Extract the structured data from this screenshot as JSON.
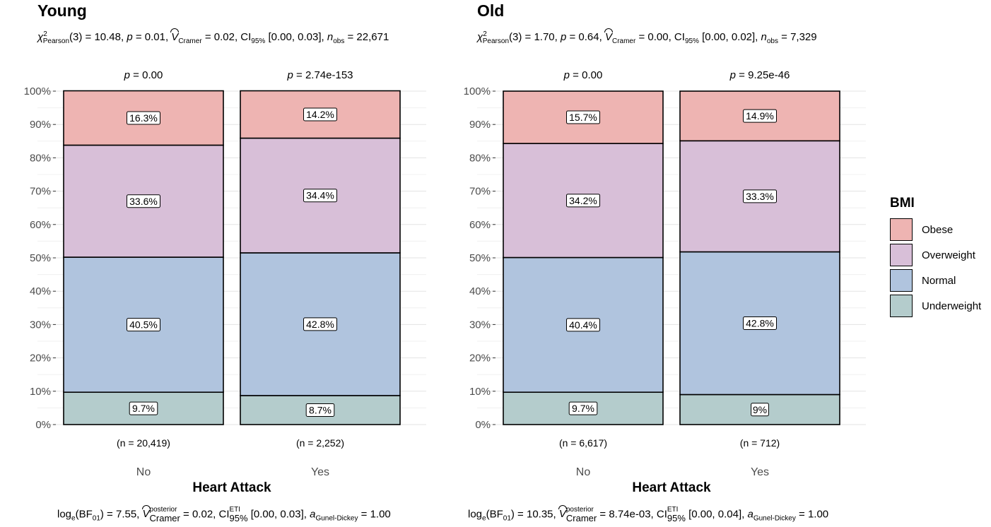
{
  "colors": {
    "Obese": "#eeb4b2",
    "Overweight": "#d8bfd8",
    "Normal": "#b0c4de",
    "Underweight": "#b4cccc"
  },
  "legend": {
    "title": "BMI",
    "items": [
      "Obese",
      "Overweight",
      "Normal",
      "Underweight"
    ]
  },
  "chart_data": [
    {
      "type": "bar",
      "stacked": true,
      "percent": true,
      "title": "Young",
      "subtitle": {
        "chi_label": "χ",
        "chi_sup": "2",
        "chi_sub": "Pearson",
        "chi_val": "(3) = 10.48, ",
        "p_label": "p",
        "p_val": " = 0.01, ",
        "v_label": "V",
        "v_sub": "Cramer",
        "v_val": " = 0.02, CI",
        "ci_sub": "95%",
        "ci_val": " [0.00, 0.03], ",
        "n_label": "n",
        "n_sub": "obs",
        "n_val": " = 22,671"
      },
      "caption": {
        "log_label": "log",
        "log_sub": "e",
        "bf": "(BF",
        "bf_sub": "01",
        "bf_val": ") = 7.55, ",
        "v_label": "V",
        "v_sup": "posterior",
        "v_sub": "Cramer",
        "v_val": " = 0.02, CI",
        "ci_sup": "ETI",
        "ci_sub": "95%",
        "ci_val": " [0.00, 0.03], ",
        "a_label": "a",
        "a_sub": "Gunel-Dickey",
        "a_val": " = 1.00"
      },
      "xlabel": "Heart Attack",
      "ylim": [
        0,
        100
      ],
      "yticks": [
        "0%",
        "10%",
        "20%",
        "30%",
        "40%",
        "50%",
        "60%",
        "70%",
        "80%",
        "90%",
        "100%"
      ],
      "categories": [
        "No",
        "Yes"
      ],
      "counts": [
        "(n = 20,419)",
        "(n = 2,252)"
      ],
      "pvalues": [
        "p = 0.00",
        "p = 2.74e-153"
      ],
      "series": [
        {
          "name": "Underweight",
          "values": [
            9.7,
            8.7
          ],
          "labels": [
            "9.7%",
            "8.7%"
          ]
        },
        {
          "name": "Normal",
          "values": [
            40.5,
            42.8
          ],
          "labels": [
            "40.5%",
            "42.8%"
          ]
        },
        {
          "name": "Overweight",
          "values": [
            33.6,
            34.4
          ],
          "labels": [
            "33.6%",
            "34.4%"
          ]
        },
        {
          "name": "Obese",
          "values": [
            16.3,
            14.2
          ],
          "labels": [
            "16.3%",
            "14.2%"
          ]
        }
      ]
    },
    {
      "type": "bar",
      "stacked": true,
      "percent": true,
      "title": "Old",
      "subtitle": {
        "chi_label": "χ",
        "chi_sup": "2",
        "chi_sub": "Pearson",
        "chi_val": "(3) = 1.70, ",
        "p_label": "p",
        "p_val": " = 0.64, ",
        "v_label": "V",
        "v_sub": "Cramer",
        "v_val": " = 0.00, CI",
        "ci_sub": "95%",
        "ci_val": " [0.00, 0.02], ",
        "n_label": "n",
        "n_sub": "obs",
        "n_val": " = 7,329"
      },
      "caption": {
        "log_label": "log",
        "log_sub": "e",
        "bf": "(BF",
        "bf_sub": "01",
        "bf_val": ") = 10.35, ",
        "v_label": "V",
        "v_sup": "posterior",
        "v_sub": "Cramer",
        "v_val": " = 8.74e-03, CI",
        "ci_sup": "ETI",
        "ci_sub": "95%",
        "ci_val": " [0.00, 0.04], ",
        "a_label": "a",
        "a_sub": "Gunel-Dickey",
        "a_val": " = 1.00"
      },
      "xlabel": "Heart Attack",
      "ylim": [
        0,
        100
      ],
      "yticks": [
        "0%",
        "10%",
        "20%",
        "30%",
        "40%",
        "50%",
        "60%",
        "70%",
        "80%",
        "90%",
        "100%"
      ],
      "categories": [
        "No",
        "Yes"
      ],
      "counts": [
        "(n = 6,617)",
        "(n = 712)"
      ],
      "pvalues": [
        "p = 0.00",
        "p = 9.25e-46"
      ],
      "series": [
        {
          "name": "Underweight",
          "values": [
            9.7,
            9.0
          ],
          "labels": [
            "9.7%",
            "9%"
          ]
        },
        {
          "name": "Normal",
          "values": [
            40.4,
            42.8
          ],
          "labels": [
            "40.4%",
            "42.8%"
          ]
        },
        {
          "name": "Overweight",
          "values": [
            34.2,
            33.3
          ],
          "labels": [
            "34.2%",
            "33.3%"
          ]
        },
        {
          "name": "Obese",
          "values": [
            15.7,
            14.9
          ],
          "labels": [
            "15.7%",
            "14.9%"
          ]
        }
      ]
    }
  ]
}
